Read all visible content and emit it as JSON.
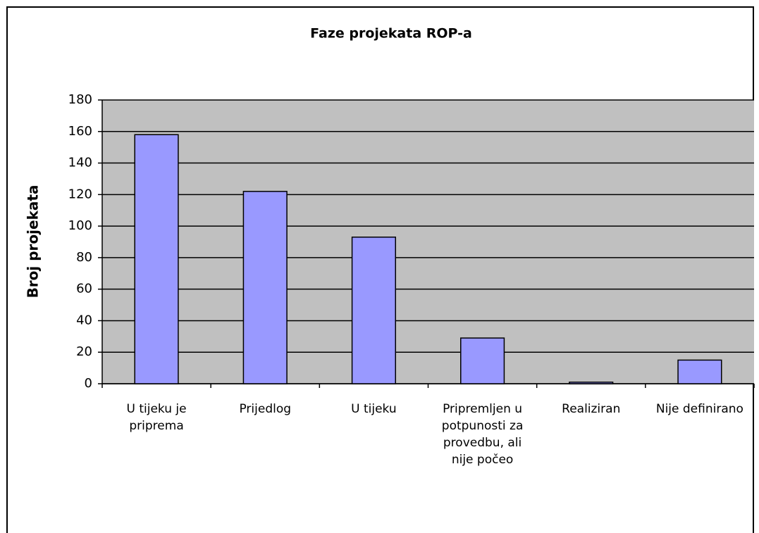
{
  "chart_data": {
    "type": "bar",
    "title": "Faze projekata ROP-a",
    "y_label": "Broj projekata",
    "categories": [
      "U tijeku je priprema",
      "Prijedlog",
      "U tijeku",
      "Pripremljen u potpunosti za provedbu, ali nije počeo",
      "Realiziran",
      "Nije definirano"
    ],
    "values": [
      158,
      122,
      93,
      29,
      1,
      15
    ],
    "color": "#9999ff",
    "ylim": [
      0,
      180
    ],
    "yticks": [
      0,
      20,
      40,
      60,
      80,
      100,
      120,
      140,
      160,
      180
    ],
    "grid": true
  }
}
